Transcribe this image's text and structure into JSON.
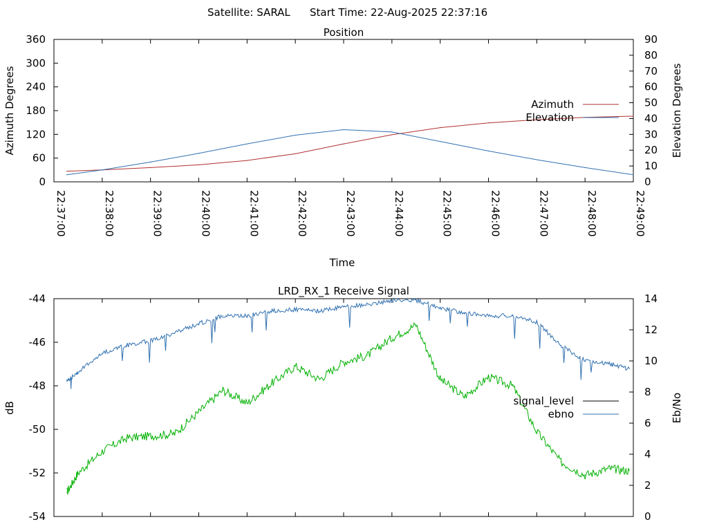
{
  "header": {
    "satellite": "Satellite: SARAL",
    "start_time": "Start Time: 22-Aug-2025 22:37:16"
  },
  "chart_data": [
    {
      "type": "line",
      "title": "Position",
      "xlabel": "Time",
      "ylabel": "Azimuth Degrees",
      "y2label": "Elevation Degrees",
      "xlim": [
        "22:37:00",
        "22:49:00"
      ],
      "ylim": [
        0,
        360
      ],
      "y2lim": [
        0,
        90
      ],
      "x_ticks": [
        "22:37:00",
        "22:38:00",
        "22:39:00",
        "22:40:00",
        "22:41:00",
        "22:42:00",
        "22:43:00",
        "22:44:00",
        "22:45:00",
        "22:46:00",
        "22:47:00",
        "22:48:00",
        "22:49:00"
      ],
      "y_ticks": [
        "0",
        "60",
        "120",
        "180",
        "240",
        "300",
        "360"
      ],
      "y2_ticks": [
        "0",
        "10",
        "20",
        "30",
        "40",
        "50",
        "60",
        "70",
        "80",
        "90"
      ],
      "grid": false,
      "legend_position": "right",
      "series": [
        {
          "name": "Azimuth",
          "axis": "y",
          "color": "#b03030",
          "x": [
            "22:37:16",
            "22:38:00",
            "22:39:00",
            "22:40:00",
            "22:41:00",
            "22:42:00",
            "22:43:00",
            "22:44:00",
            "22:45:00",
            "22:46:00",
            "22:47:00",
            "22:48:00",
            "22:49:00"
          ],
          "y": [
            27,
            30,
            36,
            43,
            54,
            71,
            96,
            119,
            137,
            149,
            157,
            163,
            166
          ]
        },
        {
          "name": "Elevation",
          "axis": "y2",
          "color": "#3070b0",
          "x": [
            "22:37:16",
            "22:38:00",
            "22:39:00",
            "22:40:00",
            "22:41:00",
            "22:42:00",
            "22:43:00",
            "22:44:00",
            "22:45:00",
            "22:46:00",
            "22:47:00",
            "22:48:00",
            "22:49:00"
          ],
          "y": [
            4.5,
            7.5,
            12.5,
            18,
            24,
            29.5,
            33,
            31.5,
            25.5,
            19.5,
            14,
            9,
            4.5
          ]
        }
      ]
    },
    {
      "type": "line",
      "title": "LRD_RX_1 Receive Signal",
      "xlabel": "",
      "ylabel": "dB",
      "y2label": "Eb/No",
      "xlim": [
        "22:37:00",
        "22:49:00"
      ],
      "ylim": [
        -54,
        -44
      ],
      "y2lim": [
        0,
        14
      ],
      "y_ticks": [
        "-54",
        "-52",
        "-50",
        "-48",
        "-46",
        "-44"
      ],
      "y2_ticks": [
        "0",
        "2",
        "4",
        "6",
        "8",
        "10",
        "12",
        "14"
      ],
      "grid": false,
      "legend_position": "right",
      "series": [
        {
          "name": "signal_level",
          "axis": "y",
          "color": "#00b000",
          "x": [
            "22:37:16",
            "22:37:30",
            "22:38:00",
            "22:38:30",
            "22:39:00",
            "22:39:30",
            "22:40:00",
            "22:40:30",
            "22:41:00",
            "22:41:30",
            "22:42:00",
            "22:42:30",
            "22:43:00",
            "22:43:30",
            "22:44:00",
            "22:44:30",
            "22:45:00",
            "22:45:30",
            "22:46:00",
            "22:46:30",
            "22:47:00",
            "22:47:30",
            "22:48:00",
            "22:48:30",
            "22:48:55"
          ],
          "y": [
            -52.9,
            -52.0,
            -51.0,
            -50.4,
            -50.3,
            -50.2,
            -49.2,
            -48.2,
            -48.8,
            -47.9,
            -47.1,
            -47.7,
            -46.9,
            -46.6,
            -45.8,
            -45.2,
            -47.7,
            -48.5,
            -47.6,
            -48.0,
            -50.1,
            -51.5,
            -52.1,
            -51.8,
            -51.9
          ]
        },
        {
          "name": "ebno",
          "axis": "y2",
          "color": "#3070b0",
          "x": [
            "22:37:16",
            "22:37:30",
            "22:38:00",
            "22:38:30",
            "22:39:00",
            "22:39:30",
            "22:40:00",
            "22:40:30",
            "22:41:00",
            "22:41:30",
            "22:42:00",
            "22:42:30",
            "22:43:00",
            "22:43:30",
            "22:44:00",
            "22:44:30",
            "22:45:00",
            "22:45:30",
            "22:46:00",
            "22:46:30",
            "22:47:00",
            "22:47:30",
            "22:48:00",
            "22:48:30",
            "22:48:55"
          ],
          "y": [
            8.7,
            9.3,
            10.5,
            11.0,
            11.3,
            11.8,
            12.4,
            12.9,
            12.9,
            13.2,
            13.3,
            13.2,
            13.5,
            13.6,
            13.9,
            13.9,
            13.4,
            13.1,
            12.9,
            12.9,
            12.5,
            11.0,
            10.0,
            9.8,
            9.5
          ]
        }
      ]
    }
  ]
}
